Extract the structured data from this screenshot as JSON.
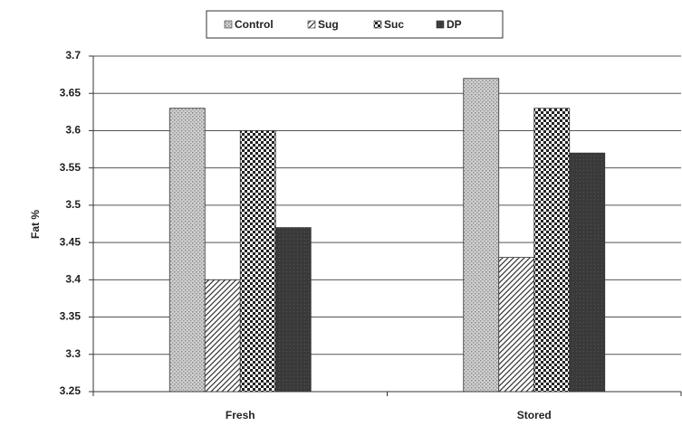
{
  "chart_data": {
    "type": "bar",
    "ylabel": "Fat %",
    "categories": [
      "Fresh",
      "Stored"
    ],
    "series": [
      {
        "name": "Control",
        "color": "#c4c4c4",
        "values": [
          3.63,
          3.67
        ]
      },
      {
        "name": "Sug",
        "color": "#ffffff",
        "values": [
          3.4,
          3.43
        ]
      },
      {
        "name": "Suc",
        "color": "#ffffff",
        "values": [
          3.6,
          3.63
        ]
      },
      {
        "name": "DP",
        "color": "#3a3a3a",
        "values": [
          3.47,
          3.57
        ]
      }
    ],
    "ylim": [
      3.25,
      3.7
    ],
    "yticks": [
      3.25,
      3.3,
      3.35,
      3.4,
      3.45,
      3.5,
      3.55,
      3.6,
      3.65,
      3.7
    ],
    "grid": true,
    "legend": "top"
  }
}
